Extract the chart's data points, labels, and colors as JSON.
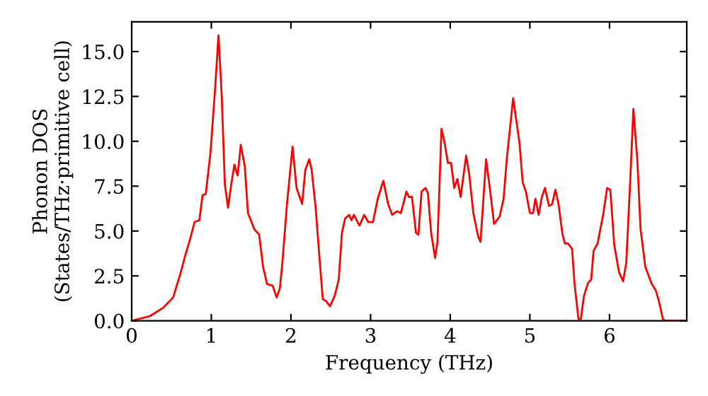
{
  "chart_data": {
    "type": "line",
    "xlabel": "Frequency (THz)",
    "ylabel": "Phonon DOS\n(States/THz·primitive cell)",
    "xlim": [
      0,
      6.97
    ],
    "ylim": [
      0,
      16.66
    ],
    "xticks": [
      0,
      1,
      2,
      3,
      4,
      5,
      6
    ],
    "yticks": [
      {
        "value": 0,
        "label": "0.0"
      },
      {
        "value": 2.5,
        "label": "2.5"
      },
      {
        "value": 5,
        "label": "5.0"
      },
      {
        "value": 7.5,
        "label": "7.5"
      },
      {
        "value": 10,
        "label": "10.0"
      },
      {
        "value": 12.5,
        "label": "12.5"
      },
      {
        "value": 15,
        "label": "15.0"
      }
    ],
    "grid": false,
    "legend": false,
    "marker": "none",
    "line_style": "solid",
    "series": [
      {
        "color": "#ff0000",
        "x": [
          0,
          0.23,
          0.4,
          0.52,
          0.61,
          0.67,
          0.73,
          0.79,
          0.85,
          0.89,
          0.93,
          0.99,
          1.05,
          1.09,
          1.13,
          1.17,
          1.21,
          1.25,
          1.29,
          1.33,
          1.37,
          1.42,
          1.46,
          1.54,
          1.6,
          1.65,
          1.7,
          1.77,
          1.82,
          1.86,
          1.89,
          1.95,
          2.02,
          2.07,
          2.14,
          2.18,
          2.23,
          2.26,
          2.31,
          2.36,
          2.4,
          2.44,
          2.49,
          2.55,
          2.6,
          2.64,
          2.68,
          2.73,
          2.76,
          2.79,
          2.86,
          2.92,
          2.97,
          3.03,
          3.09,
          3.16,
          3.22,
          3.27,
          3.33,
          3.38,
          3.45,
          3.48,
          3.52,
          3.57,
          3.6,
          3.64,
          3.69,
          3.72,
          3.76,
          3.81,
          3.84,
          3.89,
          3.93,
          3.97,
          4.01,
          4.05,
          4.09,
          4.13,
          4.2,
          4.24,
          4.29,
          4.35,
          4.38,
          4.45,
          4.5,
          4.55,
          4.62,
          4.67,
          4.71,
          4.79,
          4.87,
          4.91,
          4.95,
          5.0,
          5.04,
          5.07,
          5.11,
          5.15,
          5.19,
          5.24,
          5.28,
          5.32,
          5.36,
          5.41,
          5.44,
          5.48,
          5.53,
          5.56,
          5.61,
          5.64,
          5.68,
          5.73,
          5.77,
          5.8,
          5.85,
          5.92,
          5.97,
          6.01,
          6.06,
          6.12,
          6.17,
          6.21,
          6.26,
          6.3,
          6.35,
          6.39,
          6.45,
          6.53,
          6.58,
          6.62,
          6.67,
          6.7,
          6.97
        ],
        "values": [
          0,
          0.26,
          0.74,
          1.3,
          2.6,
          3.6,
          4.5,
          5.5,
          5.6,
          7.0,
          7.05,
          9.4,
          13.1,
          15.9,
          12.6,
          7.6,
          6.3,
          7.6,
          8.7,
          8.1,
          9.8,
          8.6,
          6.0,
          5.1,
          4.8,
          3.0,
          2.05,
          1.95,
          1.3,
          1.8,
          3.1,
          6.5,
          9.7,
          7.4,
          6.5,
          8.4,
          9.0,
          8.4,
          6.3,
          3.4,
          1.2,
          1.1,
          0.8,
          1.4,
          2.3,
          4.9,
          5.7,
          5.9,
          5.6,
          5.9,
          5.3,
          5.9,
          5.5,
          5.5,
          6.8,
          7.8,
          6.5,
          5.9,
          6.1,
          6.0,
          7.2,
          6.9,
          6.9,
          4.9,
          4.8,
          7.2,
          7.4,
          7.1,
          4.9,
          3.5,
          4.4,
          10.7,
          9.9,
          8.8,
          8.8,
          7.4,
          7.9,
          6.9,
          9.2,
          8.1,
          6.0,
          4.7,
          4.4,
          9.0,
          7.3,
          5.4,
          5.8,
          6.8,
          9.0,
          12.4,
          9.9,
          7.7,
          7.2,
          6.0,
          6.0,
          6.8,
          5.9,
          6.9,
          7.4,
          6.4,
          6.5,
          7.3,
          6.5,
          4.8,
          4.3,
          4.3,
          4.0,
          2.1,
          0.1,
          0.1,
          1.4,
          2.1,
          2.3,
          3.9,
          4.3,
          5.9,
          7.4,
          7.3,
          4.2,
          2.7,
          2.2,
          3.2,
          7.8,
          11.8,
          8.9,
          5.1,
          3.0,
          2.05,
          1.7,
          1.1,
          0.1,
          0,
          0
        ]
      }
    ]
  }
}
